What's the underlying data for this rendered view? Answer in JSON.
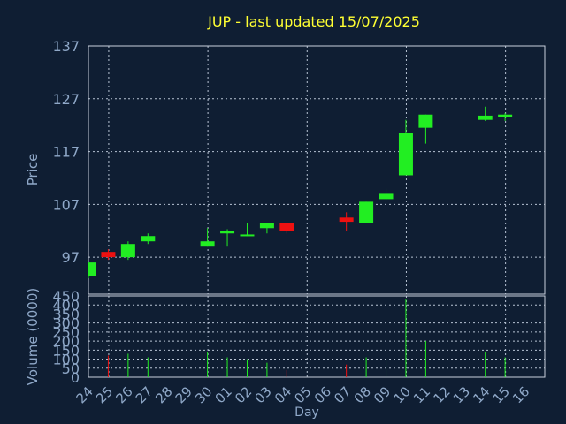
{
  "colors": {
    "background": "#0f1e33",
    "axis_text": "#8fa8c8",
    "title": "#ffff33",
    "grid": "#b8c4d4",
    "axis_line": "#c8d0dc",
    "up": "#22ee22",
    "down": "#ee1111"
  },
  "chart_data": [
    {
      "type": "candlestick",
      "title": "JUP - last updated 15/07/2025",
      "ylabel": "Price",
      "ylim": [
        90,
        137
      ],
      "yticks": [
        97,
        107,
        117,
        127,
        137
      ],
      "grid": true,
      "candles": [
        {
          "day": "24",
          "open": 93.5,
          "high": 96.0,
          "low": 93.0,
          "close": 96.0,
          "dir": "up"
        },
        {
          "day": "25",
          "open": 98.0,
          "high": 98.5,
          "low": 96.5,
          "close": 97.0,
          "dir": "down"
        },
        {
          "day": "26",
          "open": 97.0,
          "high": 100.0,
          "low": 96.5,
          "close": 99.5,
          "dir": "up"
        },
        {
          "day": "27",
          "open": 100.0,
          "high": 101.5,
          "low": 99.5,
          "close": 101.0,
          "dir": "up"
        },
        {
          "day": "30",
          "open": 99.0,
          "high": 102.5,
          "low": 99.0,
          "close": 100.0,
          "dir": "up"
        },
        {
          "day": "01",
          "open": 101.5,
          "high": 102.3,
          "low": 99.0,
          "close": 102.0,
          "dir": "up"
        },
        {
          "day": "02",
          "open": 101.0,
          "high": 103.5,
          "low": 101.0,
          "close": 101.3,
          "dir": "up"
        },
        {
          "day": "03",
          "open": 102.5,
          "high": 103.5,
          "low": 101.5,
          "close": 103.5,
          "dir": "up"
        },
        {
          "day": "04",
          "open": 103.5,
          "high": 103.5,
          "low": 101.5,
          "close": 102.0,
          "dir": "down"
        },
        {
          "day": "07",
          "open": 104.5,
          "high": 105.5,
          "low": 102.0,
          "close": 103.7,
          "dir": "down"
        },
        {
          "day": "08",
          "open": 103.5,
          "high": 107.5,
          "low": 103.5,
          "close": 107.5,
          "dir": "up"
        },
        {
          "day": "09",
          "open": 108.0,
          "high": 110.0,
          "low": 107.8,
          "close": 109.0,
          "dir": "up"
        },
        {
          "day": "10",
          "open": 112.5,
          "high": 123.0,
          "low": 112.5,
          "close": 120.5,
          "dir": "up"
        },
        {
          "day": "11",
          "open": 121.5,
          "high": 124.0,
          "low": 118.5,
          "close": 124.0,
          "dir": "up"
        },
        {
          "day": "14",
          "open": 123.0,
          "high": 125.5,
          "low": 122.8,
          "close": 123.8,
          "dir": "up"
        },
        {
          "day": "15",
          "open": 123.6,
          "high": 124.3,
          "low": 122.8,
          "close": 124.0,
          "dir": "up"
        }
      ]
    },
    {
      "type": "bar",
      "ylabel": "Volume (0000)",
      "xlabel": "Day",
      "ylim": [
        0,
        450
      ],
      "yticks": [
        0,
        50,
        100,
        150,
        200,
        250,
        300,
        350,
        400,
        450
      ],
      "categories": [
        "24",
        "25",
        "26",
        "27",
        "28",
        "29",
        "30",
        "01",
        "02",
        "03",
        "04",
        "05",
        "06",
        "07",
        "08",
        "09",
        "10",
        "11",
        "12",
        "13",
        "14",
        "15",
        "16"
      ],
      "values": [
        0,
        120,
        130,
        110,
        0,
        0,
        140,
        110,
        100,
        80,
        40,
        0,
        0,
        70,
        110,
        100,
        430,
        200,
        0,
        0,
        140,
        110,
        0
      ],
      "bar_dirs": [
        "up",
        "down",
        "up",
        "up",
        "up",
        "up",
        "up",
        "up",
        "up",
        "up",
        "down",
        "up",
        "up",
        "down",
        "up",
        "up",
        "up",
        "up",
        "up",
        "up",
        "up",
        "up",
        "up"
      ]
    }
  ]
}
